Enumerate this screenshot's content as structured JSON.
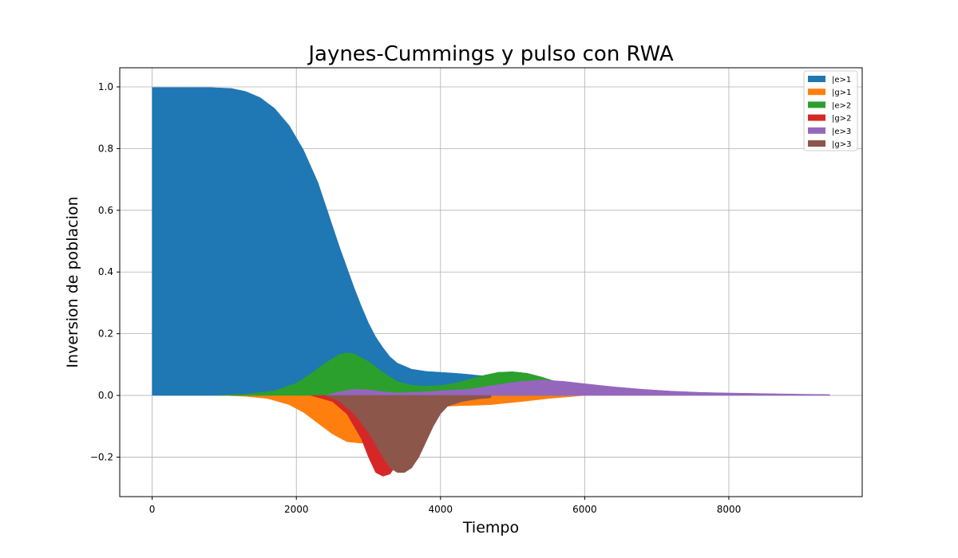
{
  "chart_data": {
    "type": "area",
    "title": "Jaynes-Cummings y pulso con RWA",
    "xlabel": "Tiempo",
    "ylabel": "Inversion de poblacion",
    "xlim": [
      -450,
      9850
    ],
    "ylim": [
      -0.328,
      1.062
    ],
    "xticks": [
      0,
      2000,
      4000,
      6000,
      8000
    ],
    "yticks": [
      -0.2,
      0.0,
      0.2,
      0.4,
      0.6,
      0.8,
      1.0
    ],
    "xtick_labels": [
      "0",
      "2000",
      "4000",
      "6000",
      "8000"
    ],
    "ytick_labels": [
      "−0.2",
      "0.0",
      "0.2",
      "0.4",
      "0.6",
      "0.8",
      "1.0"
    ],
    "grid": true,
    "legend_position": "upper right",
    "series": [
      {
        "name": "|e>1",
        "color": "#1f77b4",
        "x": [
          0,
          400,
          800,
          1100,
          1300,
          1500,
          1700,
          1900,
          2100,
          2300,
          2500,
          2600,
          2700,
          2800,
          2900,
          3000,
          3100,
          3200,
          3300,
          3400,
          3600,
          3800,
          4000,
          4200,
          4400,
          4600
        ],
        "values": [
          0.998,
          0.998,
          0.998,
          0.995,
          0.985,
          0.965,
          0.93,
          0.875,
          0.795,
          0.69,
          0.55,
          0.48,
          0.415,
          0.35,
          0.29,
          0.235,
          0.19,
          0.155,
          0.125,
          0.105,
          0.085,
          0.078,
          0.075,
          0.072,
          0.068,
          0.063
        ]
      },
      {
        "name": "|g>1",
        "color": "#ff7f0e",
        "x": [
          1000,
          1300,
          1600,
          1900,
          2100,
          2300,
          2500,
          2700,
          2900,
          3100,
          3300,
          3500,
          3700,
          3900,
          4100,
          4300,
          4500,
          4700,
          4900,
          5200,
          5500,
          5800,
          6000
        ],
        "values": [
          0.0,
          -0.003,
          -0.01,
          -0.03,
          -0.055,
          -0.09,
          -0.125,
          -0.15,
          -0.155,
          -0.14,
          -0.11,
          -0.075,
          -0.05,
          -0.04,
          -0.035,
          -0.033,
          -0.032,
          -0.03,
          -0.025,
          -0.018,
          -0.01,
          -0.004,
          0.0
        ]
      },
      {
        "name": "|e>2",
        "color": "#2ca02c",
        "x": [
          900,
          1300,
          1700,
          2000,
          2200,
          2400,
          2600,
          2700,
          2800,
          3000,
          3200,
          3400,
          3600,
          3800,
          4000,
          4200,
          4400,
          4600,
          4800,
          5000,
          5200,
          5400,
          5600,
          5800
        ],
        "values": [
          0.0,
          0.004,
          0.015,
          0.04,
          0.07,
          0.105,
          0.133,
          0.138,
          0.135,
          0.11,
          0.075,
          0.045,
          0.033,
          0.03,
          0.032,
          0.04,
          0.052,
          0.065,
          0.075,
          0.077,
          0.072,
          0.06,
          0.045,
          0.03
        ]
      },
      {
        "name": "|g>2",
        "color": "#d62728",
        "x": [
          2200,
          2500,
          2700,
          2900,
          3000,
          3100,
          3200,
          3300,
          3400,
          3600,
          3800,
          4000
        ],
        "values": [
          0.0,
          -0.02,
          -0.06,
          -0.14,
          -0.2,
          -0.25,
          -0.262,
          -0.255,
          -0.22,
          -0.12,
          -0.05,
          -0.01
        ]
      },
      {
        "name": "|e>3",
        "color": "#9467bd",
        "x": [
          2400,
          2600,
          2800,
          3000,
          3200,
          3400,
          3600,
          3800,
          4000,
          4400,
          4800,
          5100,
          5400,
          5700,
          6000,
          6400,
          6800,
          7200,
          7600,
          8000,
          8500,
          9000,
          9400
        ],
        "values": [
          0.0,
          0.012,
          0.02,
          0.018,
          0.012,
          0.008,
          0.01,
          0.012,
          0.015,
          0.02,
          0.035,
          0.045,
          0.05,
          0.046,
          0.038,
          0.028,
          0.02,
          0.014,
          0.01,
          0.008,
          0.006,
          0.004,
          0.003
        ]
      },
      {
        "name": "|g>3",
        "color": "#8c564b",
        "x": [
          2400,
          2600,
          2800,
          3000,
          3200,
          3300,
          3400,
          3500,
          3600,
          3700,
          3800,
          3900,
          4000,
          4100,
          4300,
          4500,
          4700
        ],
        "values": [
          0.0,
          -0.02,
          -0.06,
          -0.12,
          -0.2,
          -0.235,
          -0.25,
          -0.25,
          -0.235,
          -0.2,
          -0.15,
          -0.1,
          -0.06,
          -0.035,
          -0.02,
          -0.012,
          -0.008
        ]
      }
    ]
  }
}
